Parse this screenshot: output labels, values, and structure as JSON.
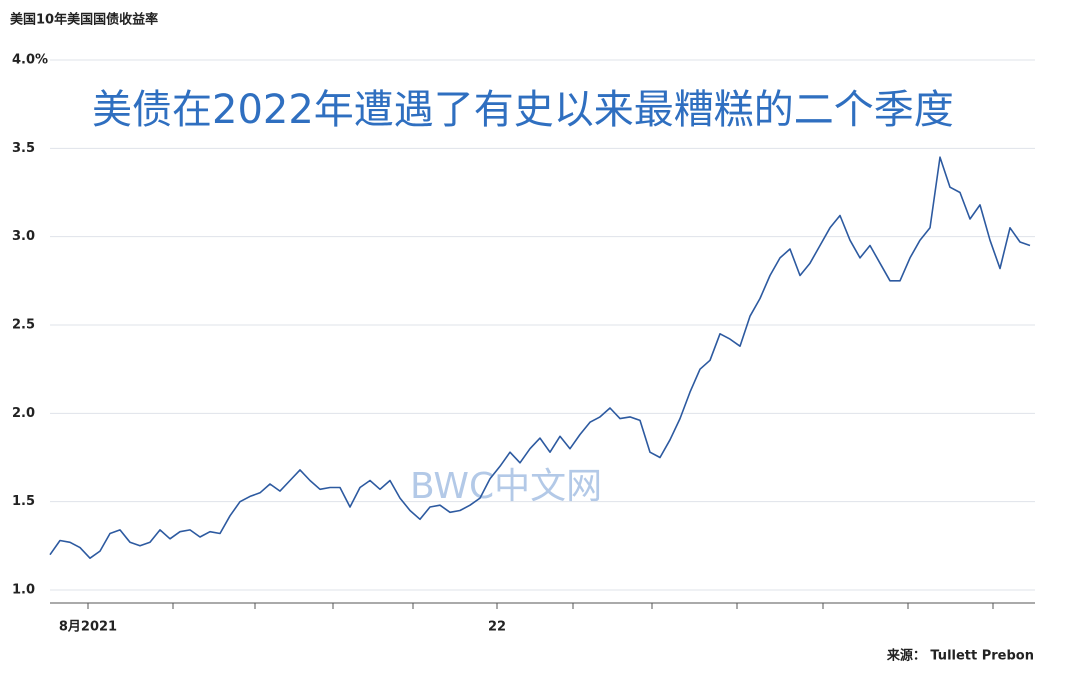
{
  "chart_data": {
    "type": "line",
    "title": "美国10年美国国债收益率",
    "headline": "美债在2022年遭遇了有史以来最糟糕的二个季度",
    "watermark": "BWC中文网",
    "source": "来源： Tullett Prebon",
    "series": [
      {
        "name": "美国10年美国国债收益率",
        "color": "#2d5aa0",
        "values": [
          1.2,
          1.28,
          1.27,
          1.24,
          1.18,
          1.22,
          1.32,
          1.34,
          1.27,
          1.25,
          1.27,
          1.34,
          1.29,
          1.33,
          1.34,
          1.3,
          1.33,
          1.32,
          1.42,
          1.5,
          1.53,
          1.55,
          1.6,
          1.56,
          1.62,
          1.68,
          1.62,
          1.57,
          1.58,
          1.58,
          1.47,
          1.58,
          1.62,
          1.57,
          1.62,
          1.52,
          1.45,
          1.4,
          1.47,
          1.48,
          1.44,
          1.45,
          1.48,
          1.52,
          1.63,
          1.7,
          1.78,
          1.72,
          1.8,
          1.86,
          1.78,
          1.87,
          1.8,
          1.88,
          1.95,
          1.98,
          2.03,
          1.97,
          1.98,
          1.96,
          1.78,
          1.75,
          1.85,
          1.97,
          2.12,
          2.25,
          2.3,
          2.45,
          2.42,
          2.38,
          2.55,
          2.65,
          2.78,
          2.88,
          2.93,
          2.78,
          2.85,
          2.95,
          3.05,
          3.12,
          2.98,
          2.88,
          2.95,
          2.85,
          2.75,
          2.75,
          2.88,
          2.98,
          3.05,
          3.45,
          3.28,
          3.25,
          3.1,
          3.18,
          2.98,
          2.82,
          3.05,
          2.97,
          2.95
        ]
      }
    ],
    "xlim": [
      0,
      98.5
    ],
    "xticks": [
      {
        "value": 3.8,
        "label": "8月2021"
      },
      {
        "value": 12.3,
        "label": null
      },
      {
        "value": 20.5,
        "label": null
      },
      {
        "value": 28.3,
        "label": null
      },
      {
        "value": 36.3,
        "label": null
      },
      {
        "value": 44.7,
        "label": "22"
      },
      {
        "value": 52.3,
        "label": null
      },
      {
        "value": 60.2,
        "label": null
      },
      {
        "value": 68.7,
        "label": null
      },
      {
        "value": 77.3,
        "label": null
      },
      {
        "value": 85.8,
        "label": null
      },
      {
        "value": 94.3,
        "label": null
      }
    ],
    "ylim": [
      1.0,
      4.0
    ],
    "yticks": [
      {
        "value": 1.0,
        "label": "1.0"
      },
      {
        "value": 1.5,
        "label": "1.5"
      },
      {
        "value": 2.0,
        "label": "2.0"
      },
      {
        "value": 2.5,
        "label": "2.5"
      },
      {
        "value": 3.0,
        "label": "3.0"
      },
      {
        "value": 3.5,
        "label": "3.5"
      },
      {
        "value": 4.0,
        "label": "4.0%"
      }
    ],
    "grid": true
  }
}
